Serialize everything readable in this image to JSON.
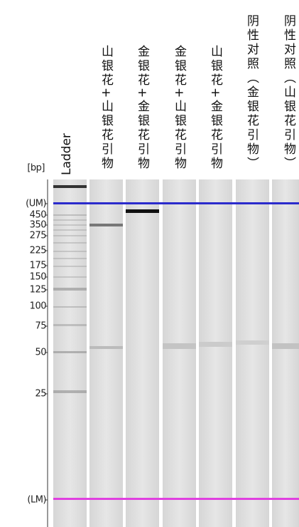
{
  "axis": {
    "unit": "[bp]",
    "ticks": [
      "(UM)",
      "450",
      "350",
      "275",
      "225",
      "175",
      "150",
      "125",
      "100",
      "75",
      "50",
      "25",
      "(LM)"
    ]
  },
  "lanes": [
    "Ladder",
    "山银花+山银花引物",
    "金银花+金银花引物",
    "金银花+山银花引物",
    "山银花+金银花引物",
    "阴性对照（金银花引物）",
    "阴性对照（山银花引物）"
  ]
}
